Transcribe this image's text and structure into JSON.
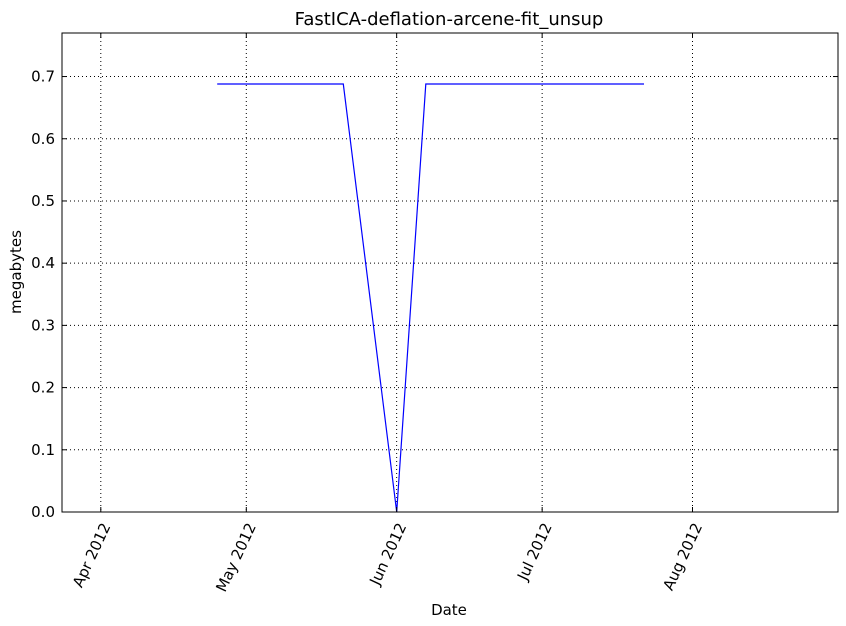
{
  "chart_data": {
    "type": "line",
    "title": "FastICA-deflation-arcene-fit_unsup",
    "xlabel": "Date",
    "ylabel": "megabytes",
    "x_axis_type": "date",
    "xlim": [
      "2012-03-24",
      "2012-08-31"
    ],
    "ylim": [
      0,
      0.77
    ],
    "grid": true,
    "x_ticks": [
      {
        "date": "2012-04-01",
        "label": "Apr 2012"
      },
      {
        "date": "2012-05-01",
        "label": "May 2012"
      },
      {
        "date": "2012-06-01",
        "label": "Jun 2012"
      },
      {
        "date": "2012-07-01",
        "label": "Jul 2012"
      },
      {
        "date": "2012-08-01",
        "label": "Aug 2012"
      }
    ],
    "y_ticks": [
      {
        "value": 0.0,
        "label": "0.0"
      },
      {
        "value": 0.1,
        "label": "0.1"
      },
      {
        "value": 0.2,
        "label": "0.2"
      },
      {
        "value": 0.3,
        "label": "0.3"
      },
      {
        "value": 0.4,
        "label": "0.4"
      },
      {
        "value": 0.5,
        "label": "0.5"
      },
      {
        "value": 0.6,
        "label": "0.6"
      },
      {
        "value": 0.7,
        "label": "0.7"
      }
    ],
    "series": [
      {
        "color": "#0000ff",
        "x": [
          "2012-04-25",
          "2012-05-21",
          "2012-06-01",
          "2012-06-07",
          "2012-07-22"
        ],
        "y": [
          0.688,
          0.688,
          0.0,
          0.688,
          0.688
        ]
      }
    ]
  }
}
